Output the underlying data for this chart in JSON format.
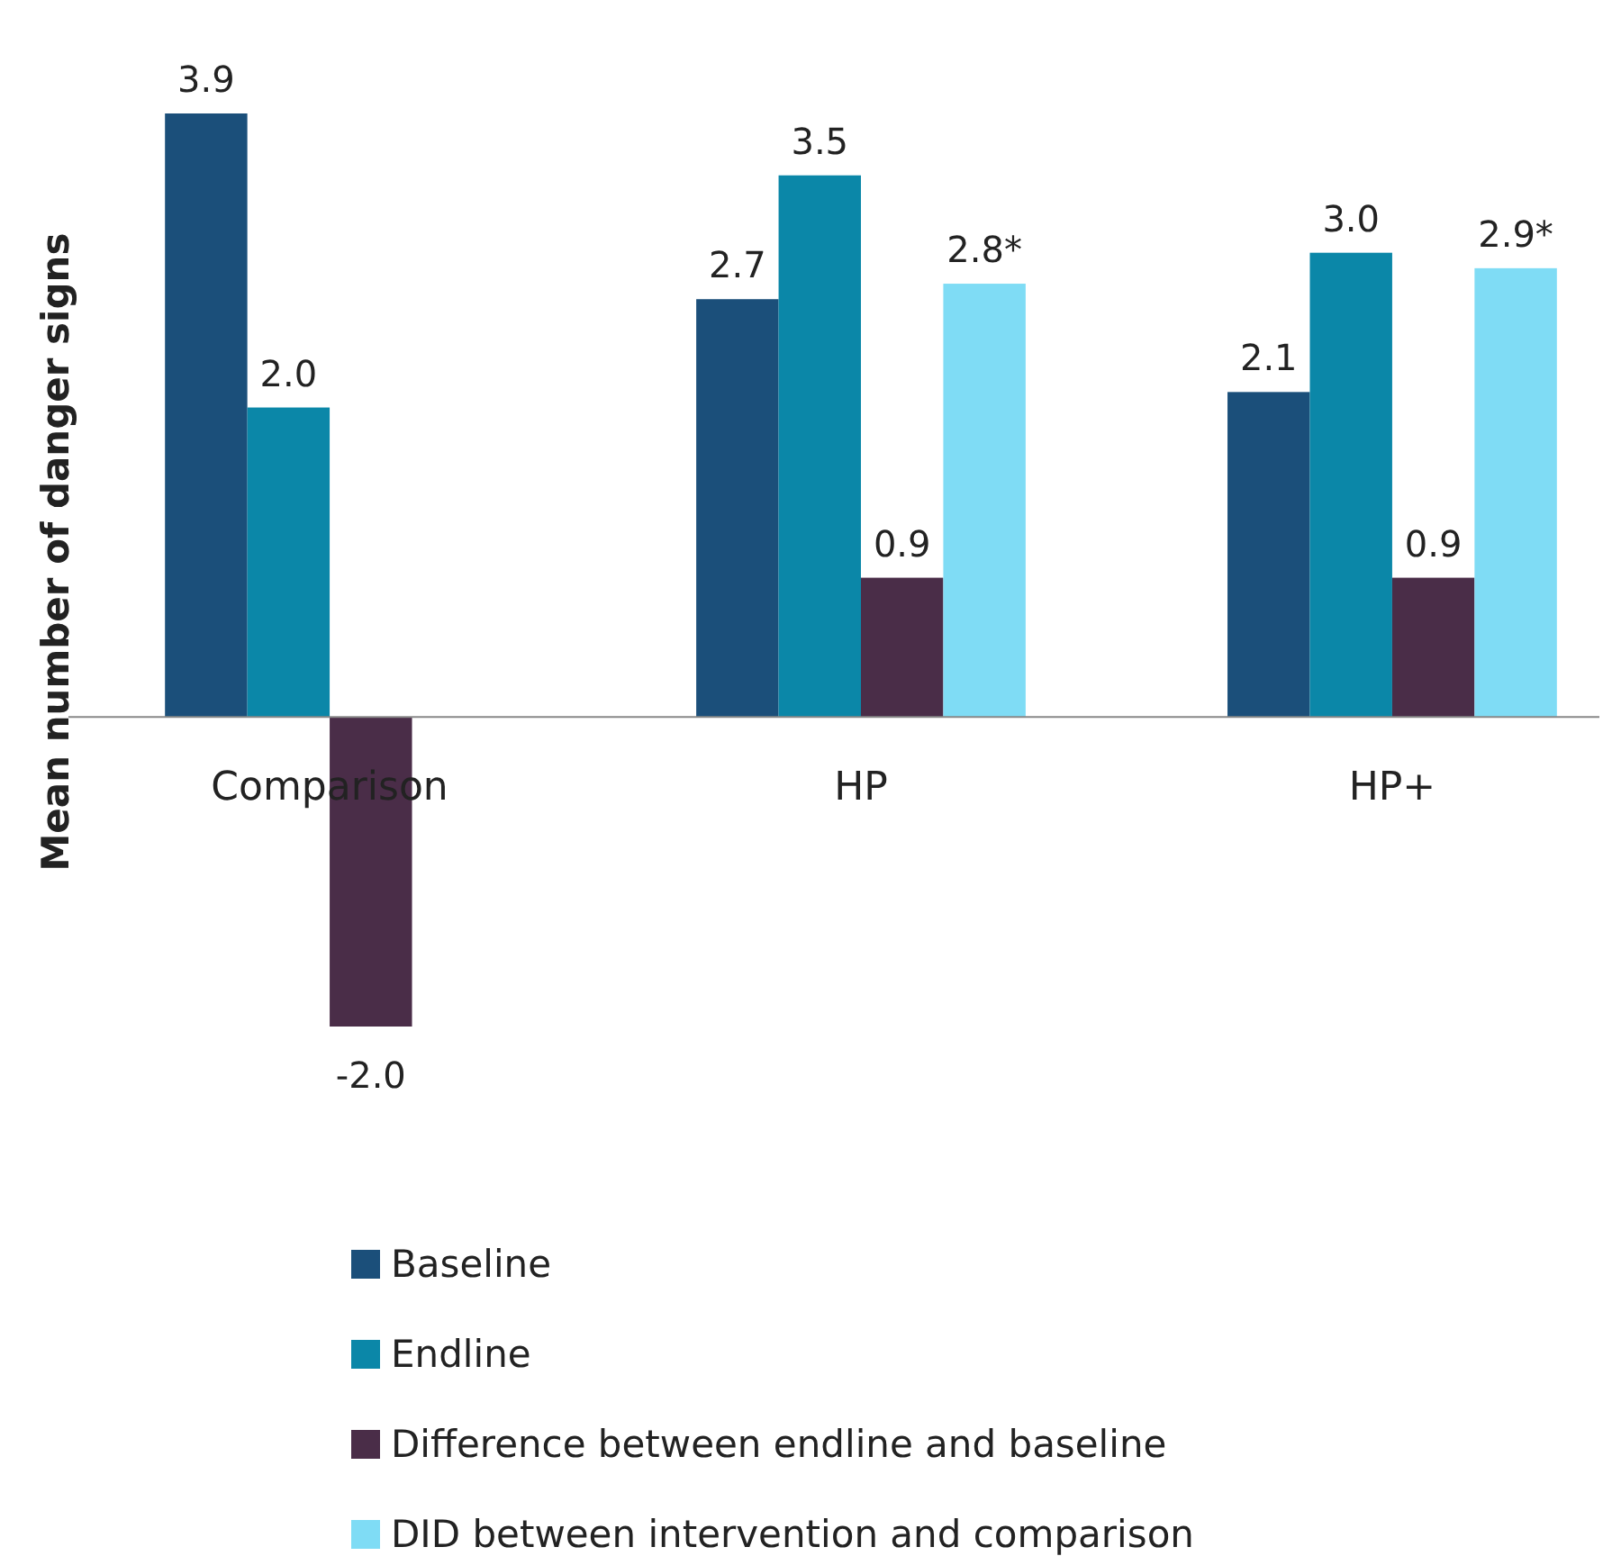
{
  "chart_data": {
    "type": "bar",
    "ylabel": "Mean number of danger signs",
    "categories": [
      "Comparison",
      "HP",
      "HP+"
    ],
    "series": [
      {
        "name": "Baseline",
        "color": "#1b4f7a",
        "values": [
          3.9,
          2.7,
          2.1
        ],
        "value_labels": [
          "3.9",
          "2.7",
          "2.1"
        ]
      },
      {
        "name": "Endline",
        "color": "#0b87a8",
        "values": [
          2.0,
          3.5,
          3.0
        ],
        "value_labels": [
          "2.0",
          "3.5",
          "3.0"
        ]
      },
      {
        "name": "Difference between endline and baseline",
        "color": "#4a2d48",
        "values": [
          -2.0,
          0.9,
          0.9
        ],
        "value_labels": [
          "-2.0",
          "0.9",
          "0.9"
        ]
      },
      {
        "name": "DID between intervention and comparison",
        "color": "#7fdcf5",
        "values": [
          null,
          2.8,
          2.9
        ],
        "value_labels": [
          null,
          "2.8*",
          "2.9*"
        ]
      }
    ],
    "legend": "bottom"
  }
}
